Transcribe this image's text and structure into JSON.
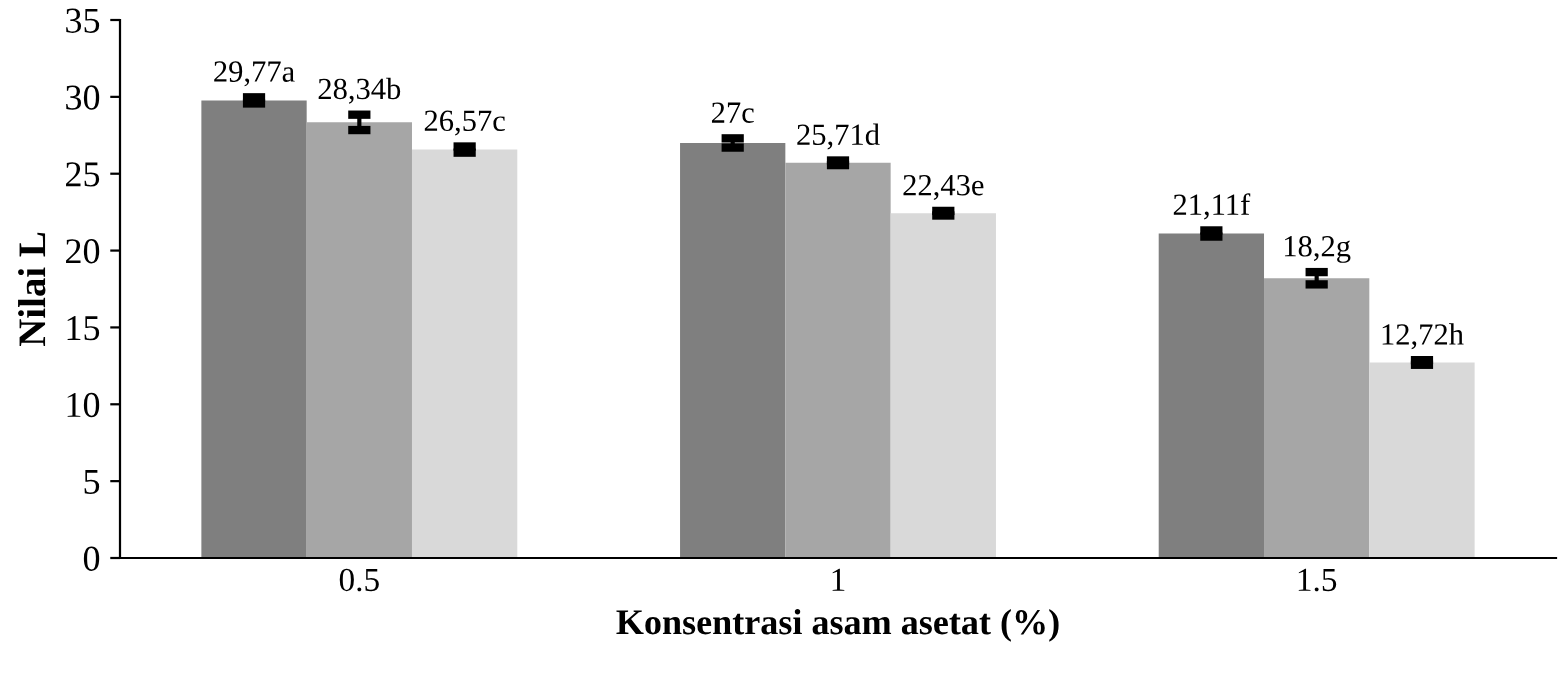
{
  "chart_data": {
    "type": "bar",
    "xlabel": "Konsentrasi asam asetat (%)",
    "ylabel": "Nilai L",
    "categories": [
      "0.5",
      "1",
      "1.5"
    ],
    "series": [
      {
        "color": "#7f7f7f",
        "values": [
          29.77,
          27,
          21.11
        ],
        "errors": [
          0.2,
          0.3,
          0.2
        ],
        "value_labels": [
          "29,77a",
          "27c",
          "21,11f"
        ]
      },
      {
        "color": "#a6a6a6",
        "values": [
          28.34,
          25.71,
          18.2
        ],
        "errors": [
          0.5,
          0.15,
          0.4
        ],
        "value_labels": [
          "28,34b",
          "25,71d",
          "18,2g"
        ]
      },
      {
        "color": "#d9d9d9",
        "values": [
          26.57,
          22.43,
          12.72
        ],
        "errors": [
          0.2,
          0.15,
          0.15
        ],
        "value_labels": [
          "26,57c",
          "22,43e",
          "12,72h"
        ]
      }
    ],
    "ylim": [
      0,
      35
    ],
    "yticks": [
      0,
      5,
      10,
      15,
      20,
      25,
      30,
      35
    ],
    "grid": false,
    "legend": false
  }
}
